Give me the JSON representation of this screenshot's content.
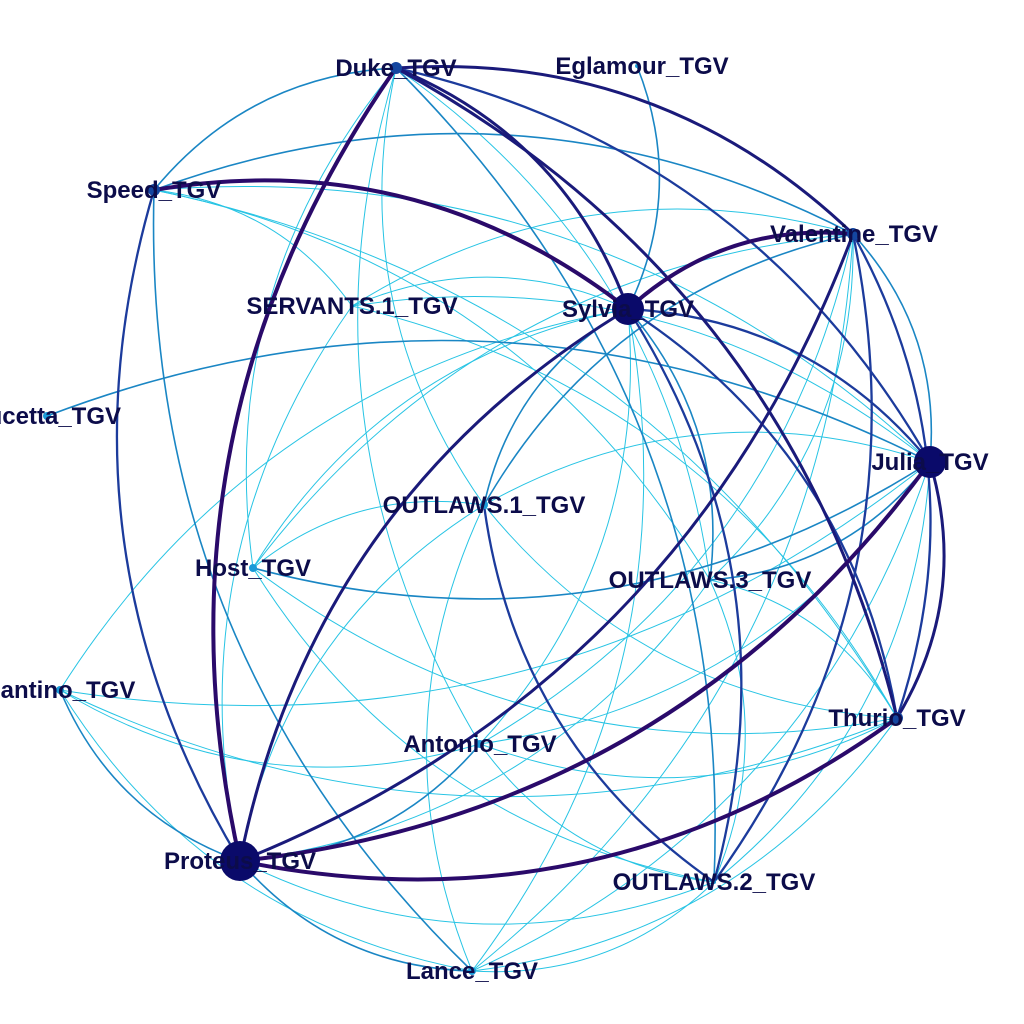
{
  "diagram": {
    "type": "network-graph",
    "colors": {
      "background": "#ffffff",
      "label": "#0c0c4a",
      "edge_weight_1": "#27c4e4",
      "edge_weight_2": "#1a86c4",
      "edge_weight_3": "#1c3b9c",
      "edge_weight_4": "#1a1a7a",
      "edge_weight_5": "#2a0a6a",
      "node_small": "#1a9ad8",
      "node_medium": "#1446a0",
      "node_large": "#0a0a6a"
    },
    "nodes": [
      {
        "id": "duke",
        "label": "Duke_TGV",
        "size": 2
      },
      {
        "id": "eglamour",
        "label": "Eglamour_TGV",
        "size": 0
      },
      {
        "id": "speed",
        "label": "Speed_TGV",
        "size": 2
      },
      {
        "id": "valentine",
        "label": "Valentine_TGV",
        "size": 2
      },
      {
        "id": "servants1",
        "label": "SERVANTS.1_TGV",
        "size": 0
      },
      {
        "id": "sylvia",
        "label": "Sylvia_TGV",
        "size": 5
      },
      {
        "id": "lucetta",
        "label": "Lucetta_TGV",
        "size": 1
      },
      {
        "id": "julia",
        "label": "Julia_TGV",
        "size": 5
      },
      {
        "id": "outlaws1",
        "label": "OUTLAWS.1_TGV",
        "size": 1
      },
      {
        "id": "host",
        "label": "Host_TGV",
        "size": 1
      },
      {
        "id": "outlaws3",
        "label": "OUTLAWS.3_TGV",
        "size": 0
      },
      {
        "id": "pantino",
        "label": "Pantino_TGV",
        "size": 1
      },
      {
        "id": "thurio",
        "label": "Thurio_TGV",
        "size": 2
      },
      {
        "id": "antonio",
        "label": "Antonio_TGV",
        "size": 1
      },
      {
        "id": "proteus",
        "label": "Proteus_TGV",
        "size": 6
      },
      {
        "id": "outlaws2",
        "label": "OUTLAWS.2_TGV",
        "size": 0
      },
      {
        "id": "lance",
        "label": "Lance_TGV",
        "size": 1
      }
    ],
    "edges": [
      {
        "from": "proteus",
        "to": "duke",
        "weight": 5
      },
      {
        "from": "speed",
        "to": "sylvia",
        "weight": 5
      },
      {
        "from": "sylvia",
        "to": "valentine",
        "weight": 5
      },
      {
        "from": "proteus",
        "to": "julia",
        "weight": 5
      },
      {
        "from": "proteus",
        "to": "thurio",
        "weight": 5
      },
      {
        "from": "proteus",
        "to": "sylvia",
        "weight": 4
      },
      {
        "from": "proteus",
        "to": "valentine",
        "weight": 4
      },
      {
        "from": "duke",
        "to": "valentine",
        "weight": 4
      },
      {
        "from": "duke",
        "to": "sylvia",
        "weight": 4
      },
      {
        "from": "duke",
        "to": "thurio",
        "weight": 4
      },
      {
        "from": "julia",
        "to": "thurio",
        "weight": 4
      },
      {
        "from": "julia",
        "to": "sylvia",
        "weight": 3
      },
      {
        "from": "valentine",
        "to": "outlaws2",
        "weight": 3
      },
      {
        "from": "sylvia",
        "to": "outlaws2",
        "weight": 3
      },
      {
        "from": "sylvia",
        "to": "thurio",
        "weight": 3
      },
      {
        "from": "duke",
        "to": "julia",
        "weight": 3
      },
      {
        "from": "valentine",
        "to": "thurio",
        "weight": 3
      },
      {
        "from": "speed",
        "to": "proteus",
        "weight": 3
      },
      {
        "from": "outlaws1",
        "to": "outlaws2",
        "weight": 3
      },
      {
        "from": "speed",
        "to": "valentine",
        "weight": 2
      },
      {
        "from": "speed",
        "to": "duke",
        "weight": 2
      },
      {
        "from": "speed",
        "to": "lance",
        "weight": 2
      },
      {
        "from": "eglamour",
        "to": "sylvia",
        "weight": 2
      },
      {
        "from": "lucetta",
        "to": "julia",
        "weight": 2
      },
      {
        "from": "pantino",
        "to": "proteus",
        "weight": 2
      },
      {
        "from": "proteus",
        "to": "lance",
        "weight": 2
      },
      {
        "from": "valentine",
        "to": "julia",
        "weight": 2
      },
      {
        "from": "valentine",
        "to": "outlaws1",
        "weight": 2
      },
      {
        "from": "sylvia",
        "to": "outlaws1",
        "weight": 2
      },
      {
        "from": "sylvia",
        "to": "outlaws3",
        "weight": 2
      },
      {
        "from": "duke",
        "to": "outlaws2",
        "weight": 2
      },
      {
        "from": "julia",
        "to": "host",
        "weight": 2
      },
      {
        "from": "proteus",
        "to": "antonio",
        "weight": 2
      },
      {
        "from": "outlaws3",
        "to": "julia",
        "weight": 2
      },
      {
        "from": "duke",
        "to": "proteus",
        "weight": 1
      },
      {
        "from": "duke",
        "to": "host",
        "weight": 1
      },
      {
        "from": "duke",
        "to": "antonio",
        "weight": 1
      },
      {
        "from": "duke",
        "to": "outlaws1",
        "weight": 1
      },
      {
        "from": "duke",
        "to": "outlaws3",
        "weight": 1
      },
      {
        "from": "speed",
        "to": "servants1",
        "weight": 1
      },
      {
        "from": "speed",
        "to": "julia",
        "weight": 1
      },
      {
        "from": "speed",
        "to": "outlaws3",
        "weight": 1
      },
      {
        "from": "speed",
        "to": "thurio",
        "weight": 1
      },
      {
        "from": "valentine",
        "to": "servants1",
        "weight": 1
      },
      {
        "from": "valentine",
        "to": "outlaws3",
        "weight": 1
      },
      {
        "from": "valentine",
        "to": "host",
        "weight": 1
      },
      {
        "from": "valentine",
        "to": "antonio",
        "weight": 1
      },
      {
        "from": "valentine",
        "to": "lance",
        "weight": 1
      },
      {
        "from": "valentine",
        "to": "proteus",
        "weight": 1
      },
      {
        "from": "servants1",
        "to": "sylvia",
        "weight": 1
      },
      {
        "from": "servants1",
        "to": "proteus",
        "weight": 1
      },
      {
        "from": "servants1",
        "to": "thurio",
        "weight": 1
      },
      {
        "from": "servants1",
        "to": "julia",
        "weight": 1
      },
      {
        "from": "sylvia",
        "to": "host",
        "weight": 1
      },
      {
        "from": "sylvia",
        "to": "pantino",
        "weight": 1
      },
      {
        "from": "sylvia",
        "to": "antonio",
        "weight": 1
      },
      {
        "from": "sylvia",
        "to": "lance",
        "weight": 1
      },
      {
        "from": "julia",
        "to": "outlaws1",
        "weight": 1
      },
      {
        "from": "julia",
        "to": "outlaws2",
        "weight": 1
      },
      {
        "from": "julia",
        "to": "antonio",
        "weight": 1
      },
      {
        "from": "julia",
        "to": "lance",
        "weight": 1
      },
      {
        "from": "julia",
        "to": "pantino",
        "weight": 1
      },
      {
        "from": "outlaws1",
        "to": "host",
        "weight": 1
      },
      {
        "from": "outlaws1",
        "to": "lance",
        "weight": 1
      },
      {
        "from": "outlaws1",
        "to": "thurio",
        "weight": 1
      },
      {
        "from": "outlaws3",
        "to": "thurio",
        "weight": 1
      },
      {
        "from": "outlaws3",
        "to": "outlaws2",
        "weight": 1
      },
      {
        "from": "outlaws3",
        "to": "proteus",
        "weight": 1
      },
      {
        "from": "host",
        "to": "thurio",
        "weight": 1
      },
      {
        "from": "host",
        "to": "outlaws2",
        "weight": 1
      },
      {
        "from": "pantino",
        "to": "antonio",
        "weight": 1
      },
      {
        "from": "pantino",
        "to": "thurio",
        "weight": 1
      },
      {
        "from": "pantino",
        "to": "lance",
        "weight": 1
      },
      {
        "from": "antonio",
        "to": "thurio",
        "weight": 1
      },
      {
        "from": "antonio",
        "to": "outlaws2",
        "weight": 1
      },
      {
        "from": "thurio",
        "to": "lance",
        "weight": 1
      },
      {
        "from": "outlaws2",
        "to": "lance",
        "weight": 1
      },
      {
        "from": "proteus",
        "to": "outlaws2",
        "weight": 1
      },
      {
        "from": "proteus",
        "to": "outlaws1",
        "weight": 1
      }
    ]
  }
}
